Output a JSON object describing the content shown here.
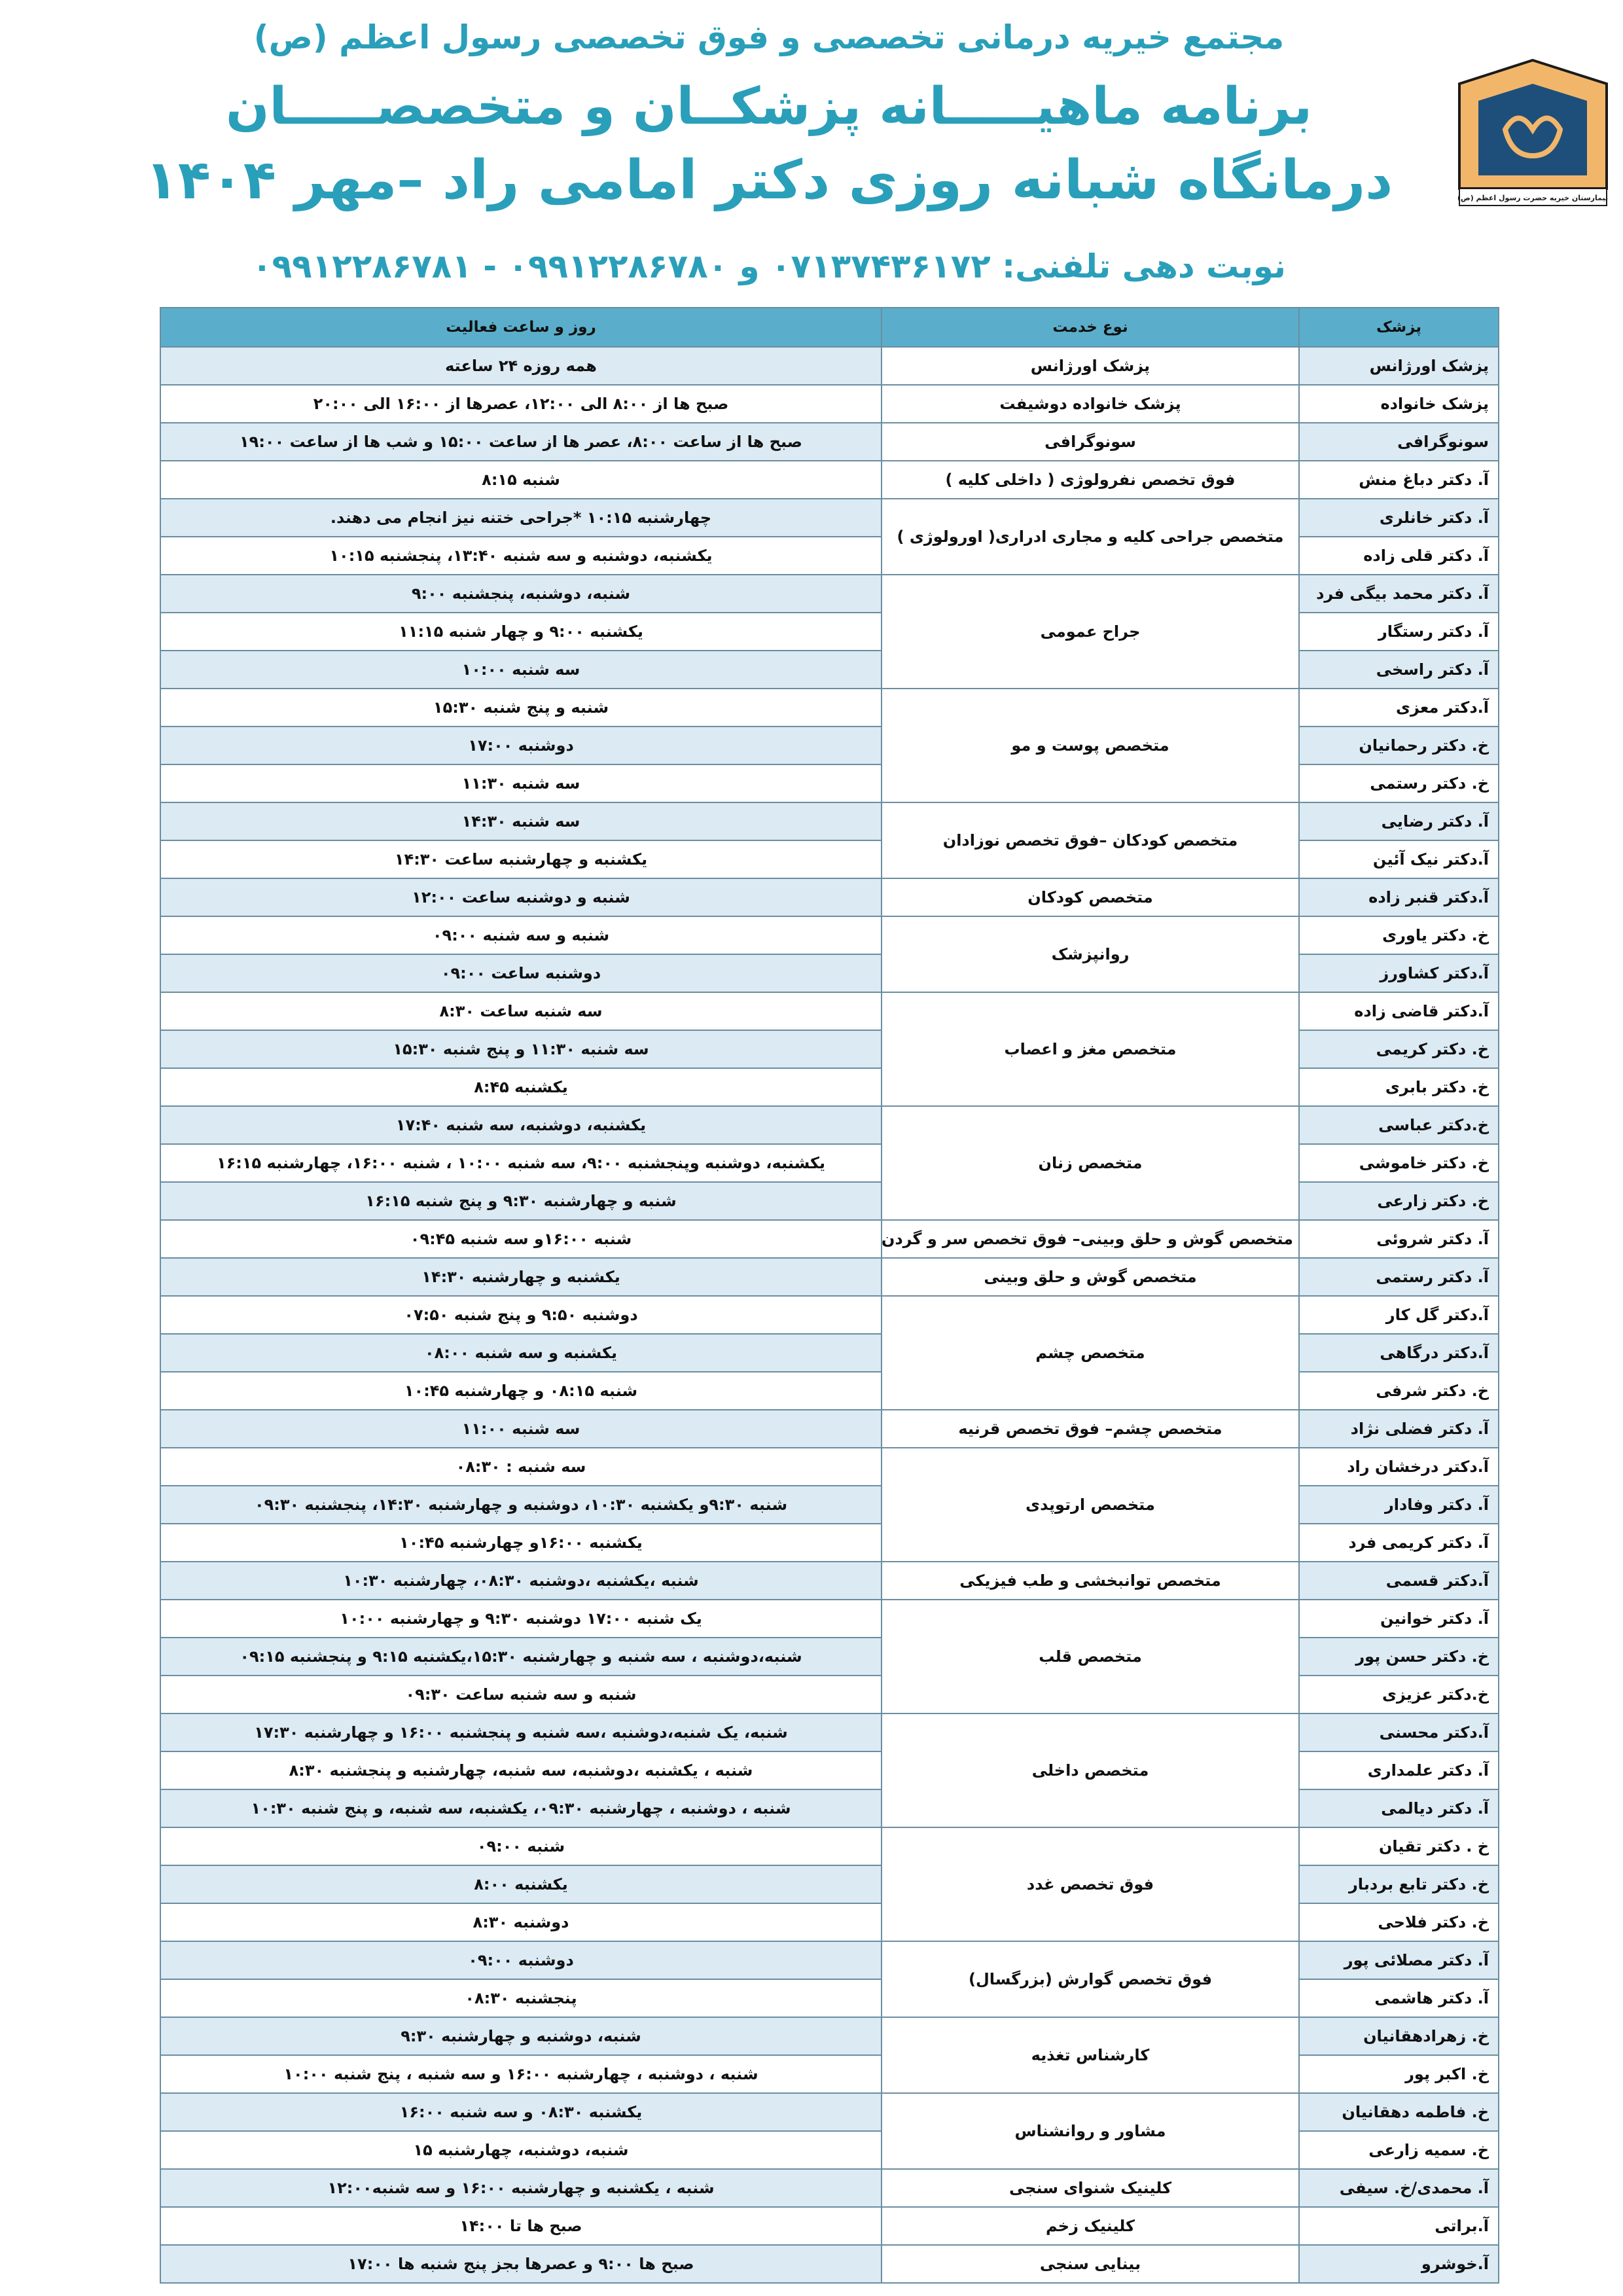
{
  "header": {
    "line1": "مجتمع خیریه درمانی تخصصی و فوق تخصصی رسول اعظم (ص)",
    "line2": "برنامه ماهیـــــانه پزشکــان و متخصصـــــان",
    "line3": "درمانگاه شبانه روزی دکتر امامی راد –مهر ۱۴۰۴",
    "phones": "نوبت دهی تلفنی: ۰۷۱۳۷۴۳۶۱۷۲ و ۰۹۹۱۲۲۸۶۷۸۰ - ۰۹۹۱۲۲۸۶۷۸۱",
    "logo_text": "بیمارستان خیریه حضرت رسول اعظم (ص)"
  },
  "table": {
    "columns": [
      "پزشک",
      "نوع خدمت",
      "روز و ساعت فعالیت"
    ],
    "groups": [
      {
        "service": "پزشک اورژانس",
        "rows": [
          {
            "doctor": "پزشک اورژانس",
            "schedule": "همه روزه   ۲۴  ساعته"
          }
        ]
      },
      {
        "service": "پزشک خانواده دوشیفت",
        "rows": [
          {
            "doctor": "پزشک خانواده",
            "schedule": "صبح ها از ۸:۰۰ الی ۱۲:۰۰، عصرها از ۱۶:۰۰ الی ۲۰:۰۰"
          }
        ]
      },
      {
        "service": "سونوگرافی",
        "rows": [
          {
            "doctor": "سونوگرافی",
            "schedule": "صبح ها از ساعت ۸:۰۰، عصر ها از ساعت ۱۵:۰۰ و شب ها از ساعت ۱۹:۰۰"
          }
        ]
      },
      {
        "service": "فوق تخصص نفرولوژی ( داخلی کلیه )",
        "rows": [
          {
            "doctor": "آ. دکتر دباغ منش",
            "schedule": "شنبه ۸:۱۵"
          }
        ]
      },
      {
        "service": "متخصص جراحی کلیه و مجاری ادراری( اورولوژی )",
        "rows": [
          {
            "doctor": "آ. دکتر خانلری",
            "schedule": "چهارشنبه ۱۰:۱۵   *جراحی ختنه نیز انجام می دهند."
          },
          {
            "doctor": "آ. دکتر قلی زاده",
            "schedule": "یکشنبه، دوشنبه و سه شنبه ۱۳:۴۰، پنجشنبه ۱۰:۱۵"
          }
        ]
      },
      {
        "service": "جراح عمومی",
        "rows": [
          {
            "doctor": "آ. دکتر محمد بیگی فرد",
            "schedule": "شنبه، دوشنبه، پنجشنبه ۹:۰۰"
          },
          {
            "doctor": "آ. دکتر رستگار",
            "schedule": "یکشنبه ۹:۰۰ و چهار شنبه ۱۱:۱۵"
          },
          {
            "doctor": "آ. دکتر راسخی",
            "schedule": "سه شنبه ۱۰:۰۰"
          }
        ]
      },
      {
        "service": "متخصص پوست و مو",
        "rows": [
          {
            "doctor": "آ.دکتر معزی",
            "schedule": "شنبه و پنج شنبه ۱۵:۳۰"
          },
          {
            "doctor": "خ. دکتر رحمانیان",
            "schedule": "دوشنبه ۱۷:۰۰"
          },
          {
            "doctor": "خ. دکتر رستمی",
            "schedule": "سه شنبه ۱۱:۳۰"
          }
        ]
      },
      {
        "service": "متخصص کودکان –فوق تخصص نوزادان",
        "rows": [
          {
            "doctor": "آ. دکتر رضایی",
            "schedule": "سه شنبه ۱۴:۳۰"
          },
          {
            "doctor": "آ.دکتر نیک آئین",
            "schedule": "یکشنبه و چهارشنبه ساعت ۱۴:۳۰"
          }
        ]
      },
      {
        "service": "متخصص کودکان",
        "rows": [
          {
            "doctor": "آ.دکتر قنبر زاده",
            "schedule": "شنبه و دوشنبه ساعت ۱۲:۰۰"
          }
        ]
      },
      {
        "service": "روانپزشک",
        "rows": [
          {
            "doctor": "خ. دکتر یاوری",
            "schedule": "شنبه و سه شنبه ۰۹:۰۰"
          },
          {
            "doctor": "آ.دکتر کشاورز",
            "schedule": "دوشنبه  ساعت ۰۹:۰۰"
          }
        ]
      },
      {
        "service": "متخصص مغز و اعصاب",
        "rows": [
          {
            "doctor": "آ.دکتر قاضی زاده",
            "schedule": "سه شنبه ساعت ۸:۳۰"
          },
          {
            "doctor": "خ. دکتر کریمی",
            "schedule": "سه شنبه ۱۱:۳۰ و پنج شنبه ۱۵:۳۰"
          },
          {
            "doctor": "خ. دکتر بابری",
            "schedule": "یکشنبه ۸:۴۵"
          }
        ]
      },
      {
        "service": "متخصص زنان",
        "rows": [
          {
            "doctor": "خ.دکتر عباسی",
            "schedule": "یکشنبه، دوشنبه، سه شنبه ۱۷:۴۰"
          },
          {
            "doctor": "خ. دکتر خاموشی",
            "schedule": "یکشنبه، دوشنبه وپنجشنبه ۹:۰۰، سه شنبه ۱۰:۰۰ ، شنبه ۱۶:۰۰، چهارشنبه ۱۶:۱۵"
          },
          {
            "doctor": "خ. دکتر زارعی",
            "schedule": "شنبه و چهارشنبه ۹:۳۰ و پنج شنبه ۱۶:۱۵"
          }
        ]
      },
      {
        "service": "متخصص گوش و حلق وبینی– فوق تخصص سر و گردن",
        "rows": [
          {
            "doctor": "آ. دکتر شروئی",
            "schedule": "شنبه ۱۶:۰۰و سه شنبه ۰۹:۴۵"
          }
        ]
      },
      {
        "service": "متخصص گوش و حلق وبینی",
        "rows": [
          {
            "doctor": "آ. دکتر رستمی",
            "schedule": "یکشنبه و چهارشنبه ۱۴:۳۰"
          }
        ]
      },
      {
        "service": "متخصص چشم",
        "rows": [
          {
            "doctor": "آ.دکتر گل کار",
            "schedule": "دوشنبه ۹:۵۰ و پنج شنبه ۰۷:۵۰"
          },
          {
            "doctor": "آ.دکتر درگاهی",
            "schedule": "یکشنبه و سه شنبه ۰۸:۰۰"
          },
          {
            "doctor": "خ. دکتر شرفی",
            "schedule": "شنبه ۰۸:۱۵ و چهارشنبه ۱۰:۴۵"
          }
        ]
      },
      {
        "service": "متخصص چشم– فوق تخصص قرنیه",
        "rows": [
          {
            "doctor": "آ. دکتر فضلی نژاد",
            "schedule": "سه شنبه ۱۱:۰۰"
          }
        ]
      },
      {
        "service": "متخصص ارتوپدی",
        "rows": [
          {
            "doctor": "آ.دکتر درخشان راد",
            "schedule": "سه شنبه : ۰۸:۳۰"
          },
          {
            "doctor": "آ. دکتر وفادار",
            "schedule": "شنبه ۹:۳۰و یکشنبه ۱۰:۳۰، دوشنبه و چهارشنبه ۱۴:۳۰، پنجشنبه ۰۹:۳۰"
          },
          {
            "doctor": "آ. دکتر کریمی فرد",
            "schedule": "یکشنبه ۱۶:۰۰و چهارشنبه ۱۰:۴۵"
          }
        ]
      },
      {
        "service": "متخصص توانبخشی و طب فیزیکی",
        "rows": [
          {
            "doctor": "آ.دکتر قسمی",
            "schedule": "شنبه ،یکشنبه ،دوشنبه ۰۸:۳۰، چهارشنبه ۱۰:۳۰"
          }
        ]
      },
      {
        "service": "متخصص قلب",
        "rows": [
          {
            "doctor": "آ. دکتر خوانین",
            "schedule": "یک شنبه  ۱۷:۰۰ دوشنبه ۹:۳۰ و چهارشنبه ۱۰:۰۰"
          },
          {
            "doctor": "خ. دکتر حسن پور",
            "schedule": "شنبه،دوشنبه ، سه شنبه و چهارشنبه ۱۵:۳۰،یکشنبه ۹:۱۵ و پنجشنبه ۰۹:۱۵"
          },
          {
            "doctor": "خ.دکتر عزیزی",
            "schedule": "شنبه و سه شنبه ساعت ۰۹:۳۰"
          }
        ]
      },
      {
        "service": "متخصص داخلی",
        "rows": [
          {
            "doctor": "آ.دکتر محسنی",
            "schedule": "شنبه، یک شنبه،دوشنبه ،سه شنبه و پنجشنبه  ۱۶:۰۰ و چهارشنبه ۱۷:۳۰"
          },
          {
            "doctor": "آ. دکتر علمداری",
            "schedule": "شنبه ، یکشنبه ،دوشنبه، سه شنبه، چهارشنبه و پنجشنبه ۸:۳۰"
          },
          {
            "doctor": "آ. دکتر دیالمی",
            "schedule": "شنبه ، دوشنبه ،  چهارشنبه  ۰۹:۳۰،  یکشنبه،  سه شنبه، و پنج شنبه ۱۰:۳۰"
          }
        ]
      },
      {
        "service": "فوق تخصص غدد",
        "rows": [
          {
            "doctor": "خ . دکتر تقیان",
            "schedule": "شنبه ۰۹:۰۰"
          },
          {
            "doctor": "خ. دکتر تابع بردبار",
            "schedule": "یکشنبه ۸:۰۰"
          },
          {
            "doctor": "خ. دکتر فلاحی",
            "schedule": "دوشنبه ۸:۳۰"
          }
        ]
      },
      {
        "service": "فوق تخصص گوارش (بزرگسال)",
        "rows": [
          {
            "doctor": "آ. دکتر مصلائی پور",
            "schedule": "دوشنبه ۰۹:۰۰"
          },
          {
            "doctor": "آ. دکتر هاشمی",
            "schedule": "پنجشنبه ۰۸:۳۰"
          }
        ]
      },
      {
        "service": "کارشناس تغذیه",
        "rows": [
          {
            "doctor": "خ. زهرادهقانیان",
            "schedule": "شنبه، دوشنبه و چهارشنبه ۹:۳۰"
          },
          {
            "doctor": "خ. اکبر پور",
            "schedule": "شنبه ، دوشنبه ، چهارشنبه ۱۶:۰۰ و سه شنبه ، پنج شنبه ۱۰:۰۰"
          }
        ]
      },
      {
        "service": "مشاور و روانشناس",
        "rows": [
          {
            "doctor": "خ. فاطمه دهقانیان",
            "schedule": "یکشنبه ۰۸:۳۰ و سه شنبه ۱۶:۰۰"
          },
          {
            "doctor": "خ. سمیه زارعی",
            "schedule": "شنبه، دوشنبه، چهارشنبه ۱۵"
          }
        ]
      },
      {
        "service": "کلینیک شنوای سنجی",
        "rows": [
          {
            "doctor": "آ. محمدی/خ. سیفی",
            "schedule": "شنبه ، یکشنبه و چهارشنبه ۱۶:۰۰ و سه شنبه۱۲:۰۰"
          }
        ]
      },
      {
        "service": "کلینیک زخم",
        "rows": [
          {
            "doctor": "آ.براتی",
            "schedule": "صبح ها تا ۱۴:۰۰"
          }
        ]
      },
      {
        "service": "بینایی سنجی",
        "rows": [
          {
            "doctor": "آ.خوشرو",
            "schedule": "صبح ها ۹:۰۰ و عصرها بجز پنج شنبه ها ۱۷:۰۰"
          }
        ]
      }
    ]
  }
}
